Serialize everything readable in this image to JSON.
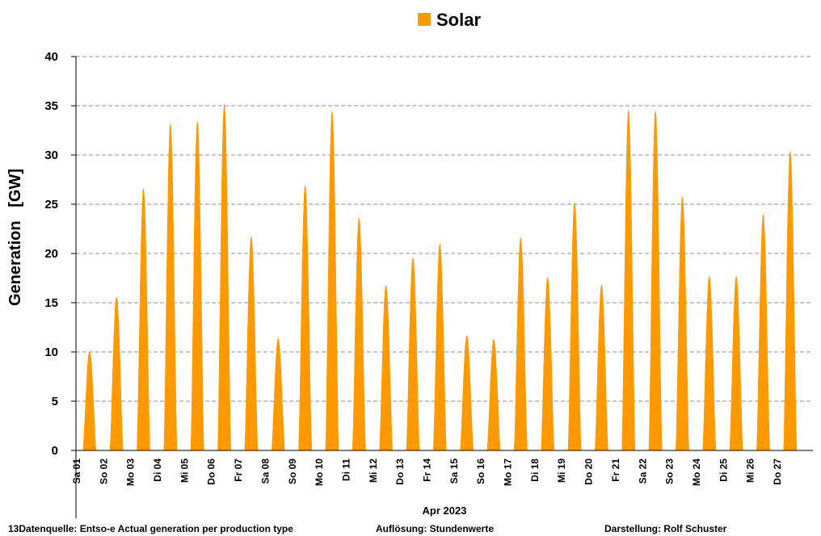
{
  "chart_data": {
    "type": "area",
    "ylabel": "Generation   [GW]",
    "xlabel": "Apr 2023",
    "ylim": [
      0,
      40
    ],
    "yticks": [
      0,
      5,
      10,
      15,
      20,
      25,
      30,
      35,
      40
    ],
    "grid": "horizontal dashed",
    "legend_position": "top-center",
    "categories": [
      "Sa 01",
      "So 02",
      "Mo 03",
      "Di 04",
      "Mi 05",
      "Do 06",
      "Fr 07",
      "Sa 08",
      "So 09",
      "Mo 10",
      "Di 11",
      "Mi 12",
      "Do 13",
      "Fr 14",
      "Sa 15",
      "So 16",
      "Mo 17",
      "Di 18",
      "Mi 19",
      "Do 20",
      "Fr 21",
      "Sa 22",
      "So 23",
      "Mo 24",
      "Di 25",
      "Mi 26",
      "Do 27"
    ],
    "series": [
      {
        "name": "Solar",
        "color": "#FF9900",
        "daily_peak": [
          10.1,
          15.6,
          26.6,
          33.2,
          33.4,
          35.2,
          21.7,
          11.4,
          26.9,
          34.5,
          23.6,
          16.8,
          19.6,
          21.0,
          11.7,
          11.3,
          21.6,
          17.6,
          25.2,
          16.8,
          34.6,
          34.5,
          25.8,
          17.7,
          17.7,
          24.0,
          30.4
        ]
      }
    ]
  },
  "footer": {
    "source": "13Datenquelle: Entso-e  Actual generation per production type",
    "resolution": "Auflösung: Stundenwerte",
    "author": "Darstellung:  Rolf Schuster"
  }
}
